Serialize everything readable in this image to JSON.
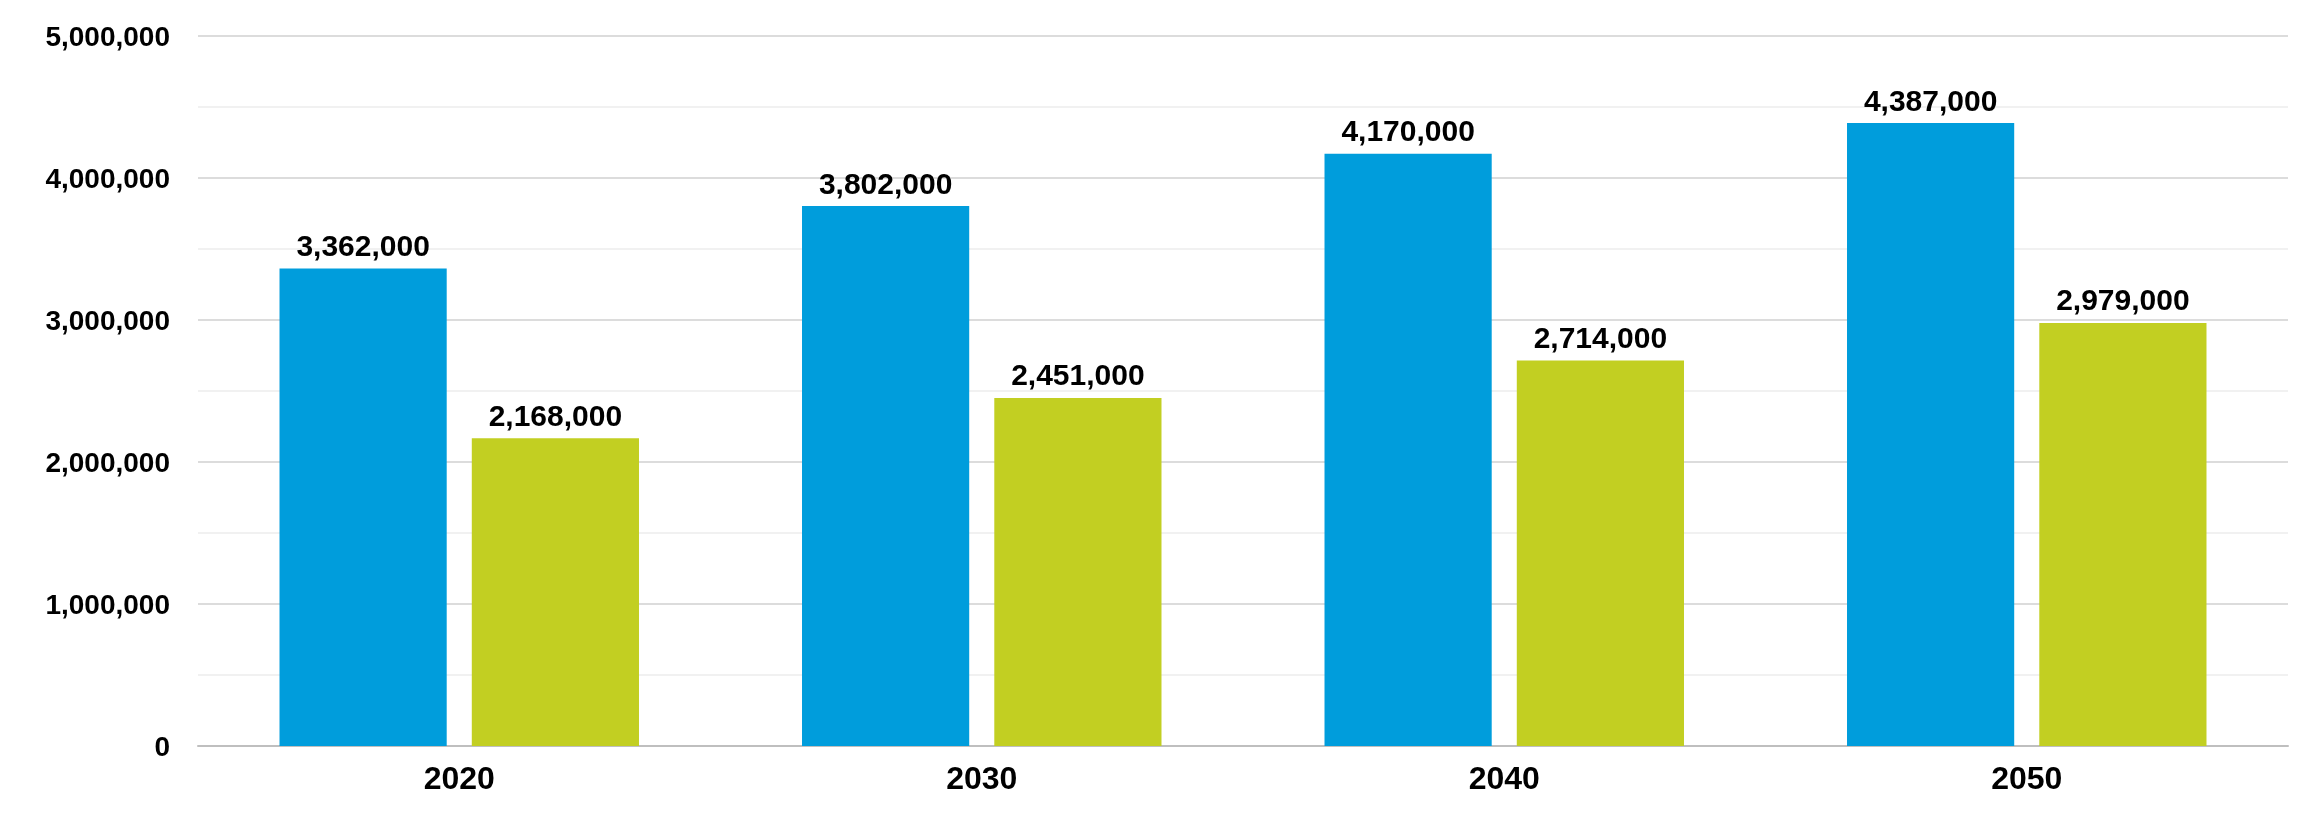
{
  "chart_data": {
    "type": "bar",
    "categories": [
      "2020",
      "2030",
      "2040",
      "2050"
    ],
    "series": [
      {
        "color": "#009ddc",
        "values": [
          3362000,
          3802000,
          4170000,
          4387000
        ],
        "value_labels": [
          "3,362,000",
          "3,802,000",
          "4,170,000",
          "4,387,000"
        ]
      },
      {
        "color": "#c2cf22",
        "values": [
          2168000,
          2451000,
          2714000,
          2979000
        ],
        "value_labels": [
          "2,168,000",
          "2,451,000",
          "2,714,000",
          "2,979,000"
        ]
      }
    ],
    "ylim": [
      0,
      5000000
    ],
    "yticks": [
      0,
      {
        "value": 1000000,
        "label": "1,000,000"
      },
      {
        "value": 2000000,
        "label": "2,000,000"
      },
      {
        "value": 3000000,
        "label": "3,000,000"
      },
      {
        "value": 4000000,
        "label": "4,000,000"
      },
      {
        "value": 5000000,
        "label": "5,000,000"
      }
    ],
    "grid": "y"
  }
}
